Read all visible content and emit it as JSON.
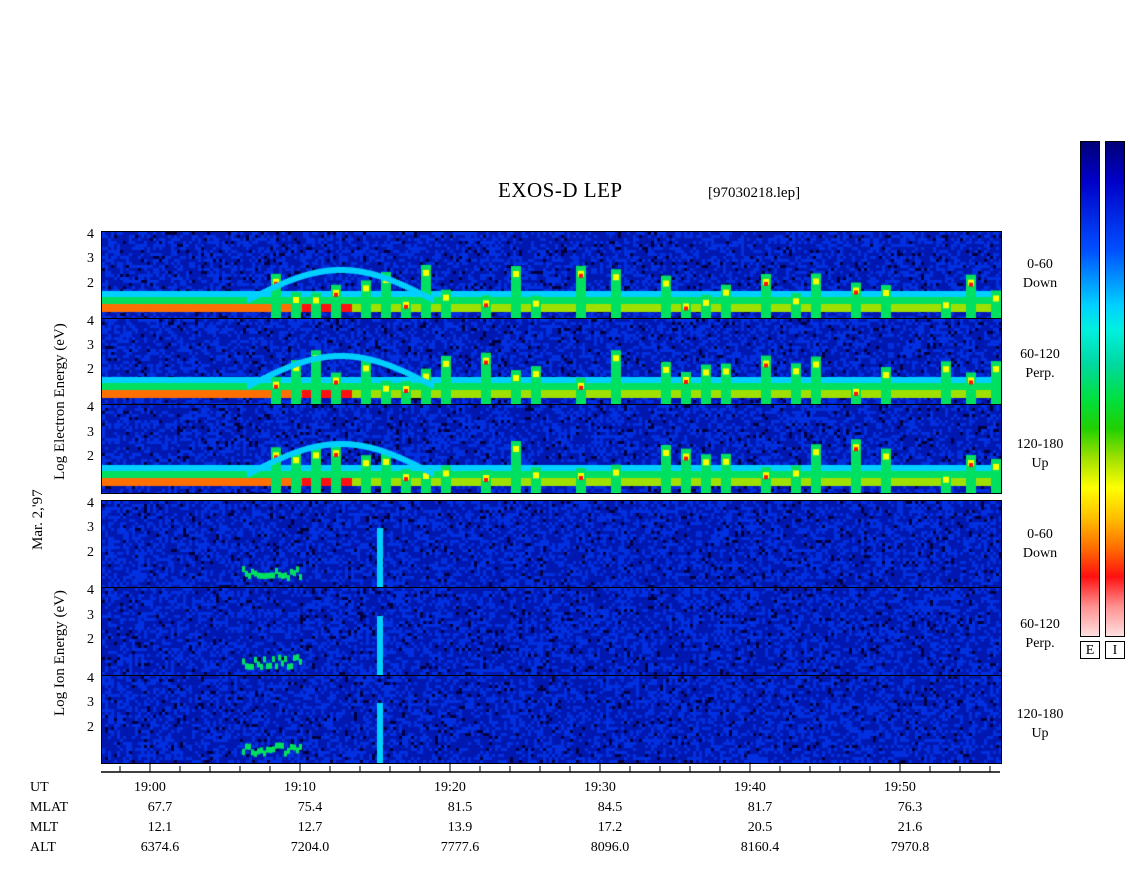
{
  "header": {
    "title": "EXOS-D LEP",
    "filename": "[97030218.lep]"
  },
  "colorbar": {
    "labels": [
      "E",
      "I"
    ]
  },
  "side_labels": {
    "date": "Mar. 2,'97",
    "electron": "Log  Electron  Energy  (eV)",
    "ion": "Log  Ion  Energy  (eV)"
  },
  "pitch_labels": [
    {
      "a": "0-60",
      "b": "Down"
    },
    {
      "a": "60-120",
      "b": "Perp."
    },
    {
      "a": "120-180",
      "b": "Up"
    },
    {
      "a": "0-60",
      "b": "Down"
    },
    {
      "a": "60-120",
      "b": "Perp."
    },
    {
      "a": "120-180",
      "b": "Up"
    }
  ],
  "y_ticks": [
    "4",
    "3",
    "2"
  ],
  "chart_data": {
    "type": "heatmap",
    "title": "EXOS-D LEP",
    "x_axis_label": "UT",
    "x_ticks": [
      "19:00",
      "19:10",
      "19:20",
      "19:30",
      "19:40",
      "19:50"
    ],
    "y_range_log_eV": [
      1,
      4
    ],
    "panels": [
      "Electron 0-60 Down",
      "Electron 60-120 Perp.",
      "Electron 120-180 Up",
      "Ion 0-60 Down",
      "Ion 60-120 Perp.",
      "Ion 120-180 Up"
    ],
    "ephemeris": {
      "MLAT": [
        "67.7",
        "75.4",
        "81.5",
        "84.5",
        "81.7",
        "76.3"
      ],
      "MLT": [
        "12.1",
        "12.7",
        "13.9",
        "17.2",
        "20.5",
        "21.6"
      ],
      "ALT": [
        "6374.6",
        "7204.0",
        "7777.6",
        "8096.0",
        "8160.4",
        "7970.8"
      ]
    }
  }
}
